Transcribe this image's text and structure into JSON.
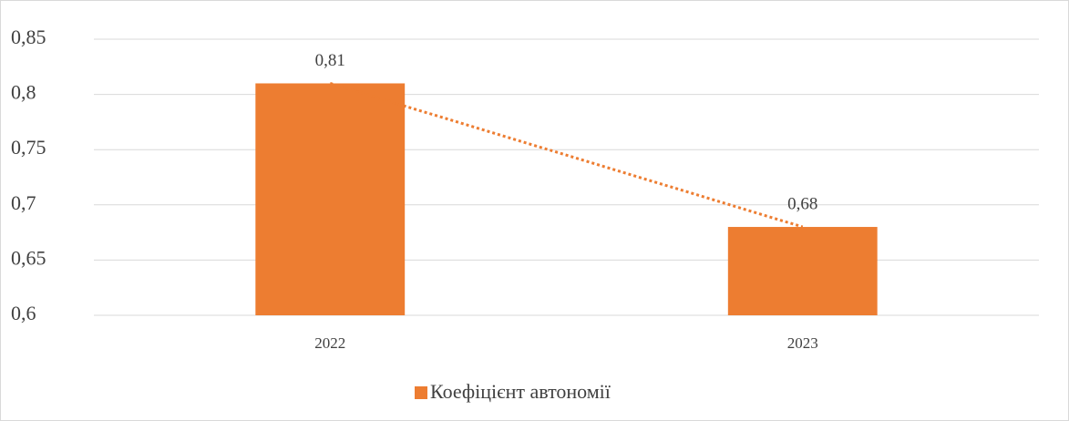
{
  "chart_data": {
    "type": "bar",
    "categories": [
      "2022",
      "2023"
    ],
    "series": [
      {
        "name": "Коефіцієнт автономії",
        "color": "#ed7d31",
        "values": [
          0.81,
          0.68
        ],
        "value_labels": [
          "0,81",
          "0,68"
        ]
      }
    ],
    "ylim": [
      0.6,
      0.85
    ],
    "yticks": [
      {
        "value": 0.6,
        "label": "0,6"
      },
      {
        "value": 0.65,
        "label": "0,65"
      },
      {
        "value": 0.7,
        "label": "0,7"
      },
      {
        "value": 0.75,
        "label": "0,75"
      },
      {
        "value": 0.8,
        "label": "0,8"
      },
      {
        "value": 0.85,
        "label": "0,85"
      }
    ],
    "grid": true,
    "trendline": true,
    "legend": "bottom"
  }
}
